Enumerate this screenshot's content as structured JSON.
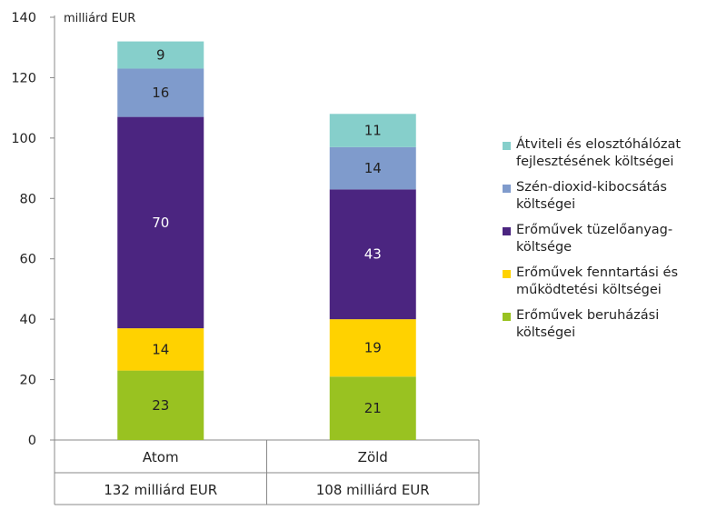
{
  "chart_data": {
    "type": "bar",
    "stacked": true,
    "unit_label": "milliárd EUR",
    "ylim": [
      0,
      140
    ],
    "yticks": [
      0,
      20,
      40,
      60,
      80,
      100,
      120,
      140
    ],
    "categories": [
      "Atom",
      "Zöld"
    ],
    "category_totals": [
      "132 milliárd EUR",
      "108 milliárd EUR"
    ],
    "series": [
      {
        "name": "Erőművek beruházási költségei",
        "color": "#99c221",
        "values": [
          23,
          21
        ]
      },
      {
        "name": "Erőművek fenntartási és működtetési költségei",
        "color": "#ffd200",
        "values": [
          14,
          19
        ]
      },
      {
        "name": "Erőművek tüzelőanyag-költsége",
        "color": "#4b2580",
        "values": [
          70,
          43
        ]
      },
      {
        "name": "Szén-dioxid-kibocsátás költségei",
        "color": "#7f9bcc",
        "values": [
          16,
          14
        ]
      },
      {
        "name": "Átviteli és elosztóhálózat fejlesztésének költségei",
        "color": "#86cfcb",
        "values": [
          9,
          11
        ]
      }
    ],
    "legend_order": [
      4,
      3,
      2,
      1,
      0
    ],
    "legend_position": "right",
    "grid": false
  }
}
